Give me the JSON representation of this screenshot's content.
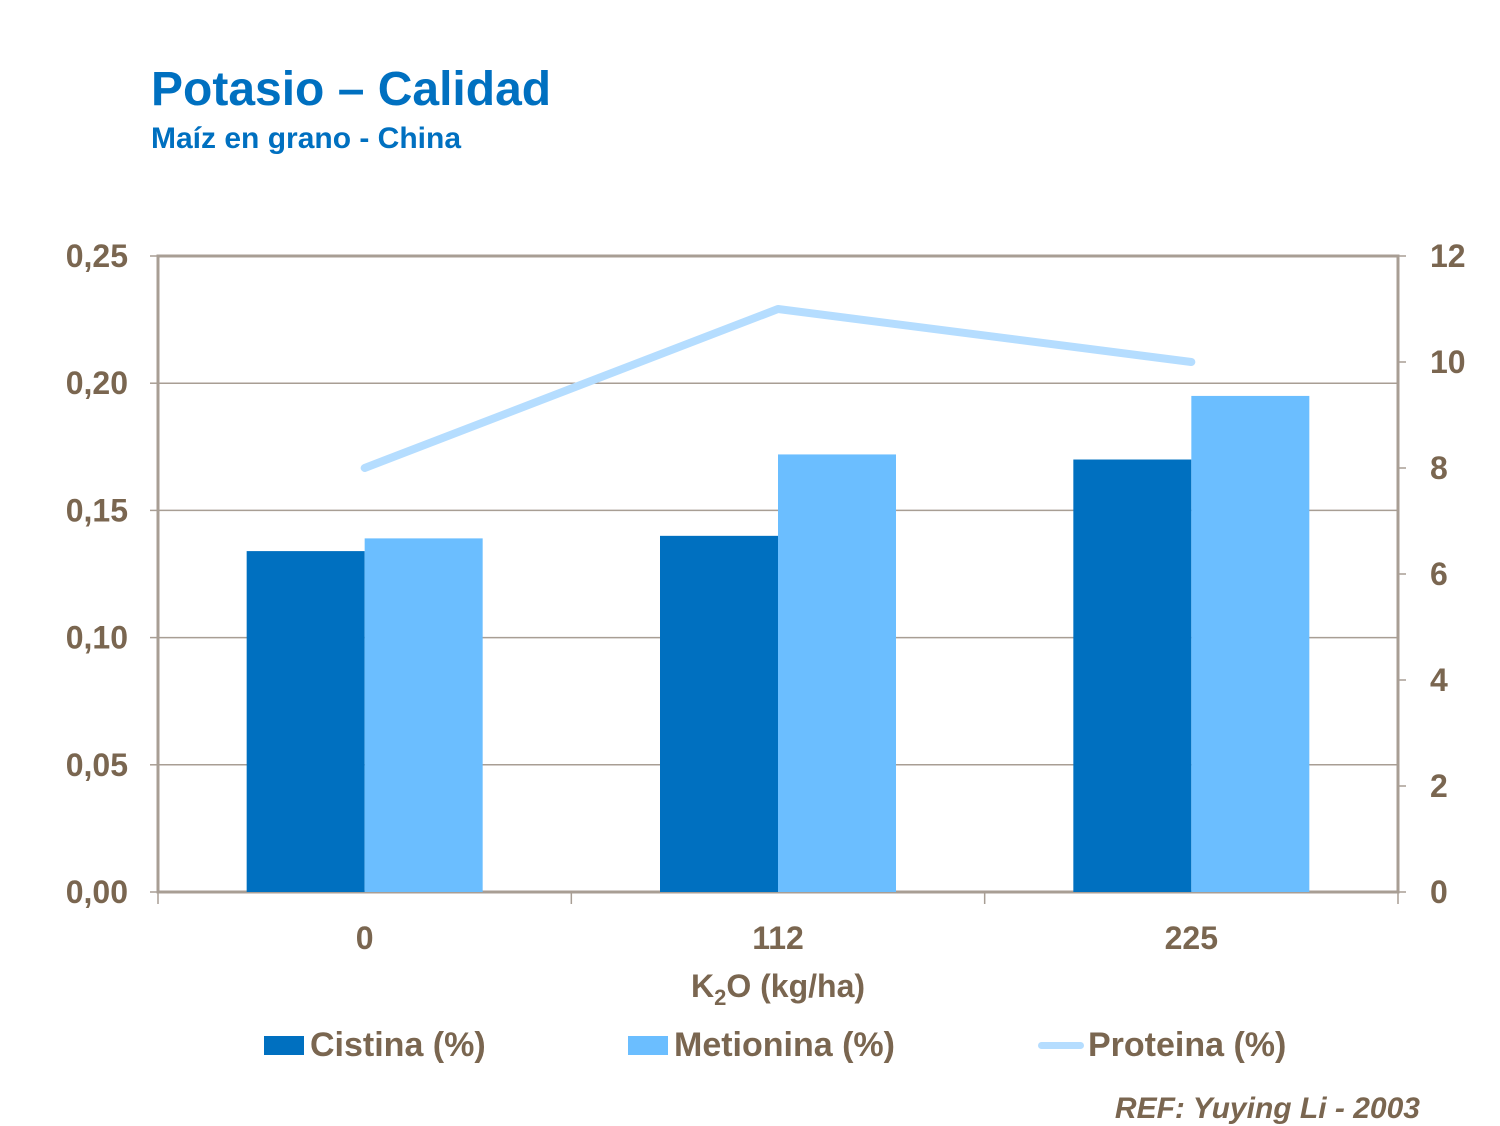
{
  "title": "Potasio – Calidad",
  "subtitle": "Maíz en grano - China",
  "reference": "REF: Yuying Li - 2003",
  "chart_data": {
    "type": "bar",
    "categories": [
      "0",
      "112",
      "225"
    ],
    "xlabel_main": "K",
    "xlabel_sub": "2",
    "xlabel_rest": "O (kg/ha)",
    "series": [
      {
        "name": "Cistina (%)",
        "type": "bar",
        "axis": "left",
        "color": "#0070C0",
        "values": [
          0.134,
          0.14,
          0.17
        ]
      },
      {
        "name": "Metionina (%)",
        "type": "bar",
        "axis": "left",
        "color": "#6BBEFF",
        "values": [
          0.139,
          0.172,
          0.195
        ]
      },
      {
        "name": "Proteina (%)",
        "type": "line",
        "axis": "right",
        "color": "#B5DDFF",
        "values": [
          8,
          11,
          10
        ]
      }
    ],
    "left_axis": {
      "ylim": [
        0,
        0.25
      ],
      "ticks": [
        "0,00",
        "0,05",
        "0,10",
        "0,15",
        "0,20",
        "0,25"
      ]
    },
    "right_axis": {
      "ylim": [
        0,
        12
      ],
      "ticks": [
        "0",
        "2",
        "4",
        "6",
        "8",
        "10",
        "12"
      ]
    },
    "grid": true,
    "legend_position": "bottom"
  }
}
